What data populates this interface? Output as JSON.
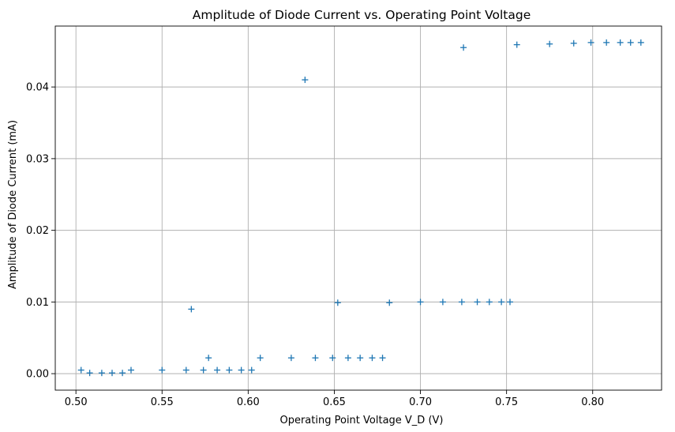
{
  "chart_data": {
    "type": "scatter",
    "title": "Amplitude of Diode Current vs. Operating Point Voltage",
    "xlabel": "Operating Point Voltage V_D (V)",
    "ylabel": "Amplitude of Diode Current (mA)",
    "xlim": [
      0.488,
      0.84
    ],
    "ylim": [
      -0.0023,
      0.0485
    ],
    "xticks": [
      0.5,
      0.55,
      0.6,
      0.65,
      0.7,
      0.75,
      0.8
    ],
    "xtick_labels": [
      "0.50",
      "0.55",
      "0.60",
      "0.65",
      "0.70",
      "0.75",
      "0.80"
    ],
    "yticks": [
      0.0,
      0.01,
      0.02,
      0.03,
      0.04
    ],
    "ytick_labels": [
      "0.00",
      "0.01",
      "0.02",
      "0.03",
      "0.04"
    ],
    "grid": true,
    "marker": "+",
    "color": "#1f77b4",
    "points": [
      [
        0.503,
        0.0005
      ],
      [
        0.508,
        0.0001
      ],
      [
        0.515,
        0.0001
      ],
      [
        0.521,
        0.0001
      ],
      [
        0.527,
        0.0001
      ],
      [
        0.532,
        0.0005
      ],
      [
        0.55,
        0.0005
      ],
      [
        0.564,
        0.0005
      ],
      [
        0.567,
        0.009
      ],
      [
        0.574,
        0.0005
      ],
      [
        0.577,
        0.0022
      ],
      [
        0.582,
        0.0005
      ],
      [
        0.589,
        0.0005
      ],
      [
        0.596,
        0.0005
      ],
      [
        0.602,
        0.0005
      ],
      [
        0.607,
        0.0022
      ],
      [
        0.625,
        0.0022
      ],
      [
        0.633,
        0.041
      ],
      [
        0.639,
        0.0022
      ],
      [
        0.649,
        0.0022
      ],
      [
        0.652,
        0.0099
      ],
      [
        0.658,
        0.0022
      ],
      [
        0.665,
        0.0022
      ],
      [
        0.672,
        0.0022
      ],
      [
        0.678,
        0.0022
      ],
      [
        0.682,
        0.0099
      ],
      [
        0.7,
        0.01
      ],
      [
        0.713,
        0.01
      ],
      [
        0.724,
        0.01
      ],
      [
        0.725,
        0.0455
      ],
      [
        0.733,
        0.01
      ],
      [
        0.74,
        0.01
      ],
      [
        0.747,
        0.01
      ],
      [
        0.752,
        0.01
      ],
      [
        0.756,
        0.0459
      ],
      [
        0.775,
        0.046
      ],
      [
        0.789,
        0.0461
      ],
      [
        0.799,
        0.0462
      ],
      [
        0.808,
        0.0462
      ],
      [
        0.816,
        0.0462
      ],
      [
        0.822,
        0.0462
      ],
      [
        0.828,
        0.0462
      ]
    ]
  }
}
